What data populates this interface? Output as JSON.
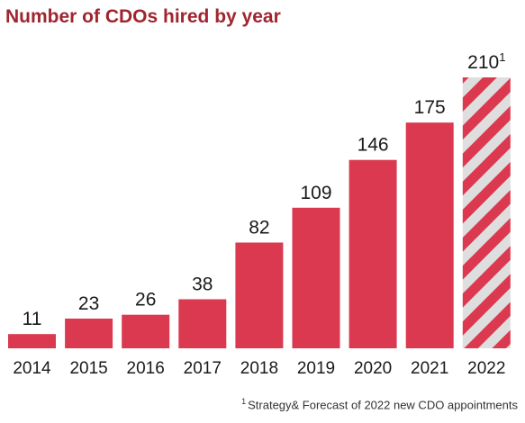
{
  "chart_data": {
    "type": "bar",
    "title": "Number of CDOs hired by year",
    "categories": [
      "2014",
      "2015",
      "2016",
      "2017",
      "2018",
      "2019",
      "2020",
      "2021",
      "2022"
    ],
    "values": [
      11,
      23,
      26,
      38,
      82,
      109,
      146,
      175,
      210
    ],
    "value_labels": [
      "11",
      "23",
      "26",
      "38",
      "82",
      "109",
      "146",
      "175",
      "210"
    ],
    "forecast": [
      false,
      false,
      false,
      false,
      false,
      false,
      false,
      false,
      true
    ],
    "forecast_marker": "1",
    "ylim": [
      0,
      210
    ],
    "grid": false,
    "legend": "none",
    "xlabel": "",
    "ylabel": ""
  },
  "footnote": {
    "marker": "1",
    "text": "Strategy& Forecast of 2022 new CDO appointments"
  },
  "colors": {
    "title": "#a0252e",
    "bar": "#db3950",
    "forecast_stripe_a": "#db3950",
    "forecast_stripe_b": "#dedede"
  }
}
